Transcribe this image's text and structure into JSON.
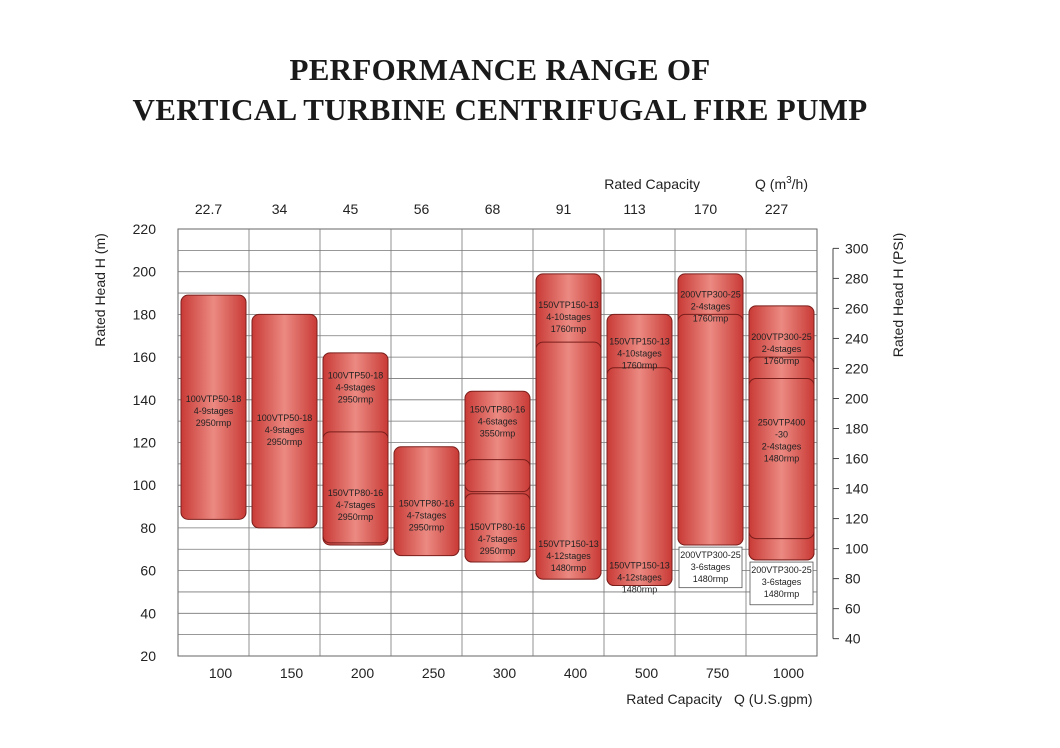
{
  "chart_data": {
    "type": "range-bar",
    "title_line1": "PERFORMANCE RANGE OF",
    "title_line2": "VERTICAL TURBINE CENTRIFUGAL FIRE PUMP",
    "top_axis_label": "Rated Capacity",
    "top_axis_unit_base": "Q (m",
    "top_axis_unit_sup": "3",
    "top_axis_unit_end": "/h)",
    "bottom_axis_label": "Rated Capacity",
    "bottom_axis_unit": "Q (U.S.gpm)",
    "left_axis_label": "Rated Head",
    "left_axis_unit": "H (m)",
    "right_axis_label": "Rated Head",
    "right_axis_unit": "H (PSI)",
    "categories_gpm": [
      "100",
      "150",
      "200",
      "250",
      "300",
      "400",
      "500",
      "750",
      "1000"
    ],
    "categories_m3h": [
      "22.7",
      "34",
      "45",
      "56",
      "68",
      "91",
      "113",
      "170",
      "227"
    ],
    "y_ticks_m": [
      20,
      40,
      60,
      80,
      100,
      120,
      140,
      160,
      180,
      200,
      220
    ],
    "ylim_m": [
      20,
      220
    ],
    "y_ticks_psi": [
      40,
      60,
      80,
      100,
      120,
      140,
      160,
      180,
      200,
      220,
      240,
      260,
      280,
      300
    ],
    "grid": true,
    "bars": [
      {
        "col": 0,
        "low": 84,
        "high": 189,
        "label": [
          "100VTP50-18",
          "4-9stages",
          "2950rmp"
        ],
        "label_y": 139
      },
      {
        "col": 1,
        "low": 80,
        "high": 180,
        "label": [
          "100VTP50-18",
          "4-9stages",
          "2950rmp"
        ],
        "label_y": 130
      },
      {
        "col": 2,
        "low": 72,
        "high": 162,
        "label": [
          "100VTP50-18",
          "4-9stages",
          "2950rmp"
        ],
        "label_y": 150
      },
      {
        "col": 2,
        "low": 73,
        "high": 125,
        "label": [
          "150VTP80-16",
          "4-7stages",
          "2950rmp"
        ],
        "label_y": 95
      },
      {
        "col": 3,
        "low": 67,
        "high": 118,
        "label": [
          "150VTP80-16",
          "4-7stages",
          "2950rmp"
        ],
        "label_y": 90
      },
      {
        "col": 4,
        "low": 64,
        "high": 144,
        "label": [
          "150VTP80-16",
          "4-6stages",
          "3550rmp"
        ],
        "label_y": 134
      },
      {
        "col": 4,
        "low": 97,
        "high": 112,
        "label": [],
        "label_y": 0
      },
      {
        "col": 4,
        "low": 64,
        "high": 96,
        "label": [
          "150VTP80-16",
          "4-7stages",
          "2950rmp"
        ],
        "label_y": 79
      },
      {
        "col": 5,
        "low": 56,
        "high": 199,
        "label": [
          "150VTP150-13",
          "4-10stages",
          "1760rmp"
        ],
        "label_y": 183
      },
      {
        "col": 5,
        "low": 56,
        "high": 167,
        "label": [
          "150VTP150-13",
          "4-12stages",
          "1480rmp"
        ],
        "label_y": 71
      },
      {
        "col": 6,
        "low": 53,
        "high": 180,
        "label": [
          "150VTP150-13",
          "4-10stages",
          "1760rmp"
        ],
        "label_y": 166
      },
      {
        "col": 6,
        "low": 53,
        "high": 155,
        "label": [
          "150VTP150-13",
          "4-12stages",
          "1480rmp"
        ],
        "label_y": 61
      },
      {
        "col": 7,
        "low": 72,
        "high": 199,
        "label": [
          "200VTP300-25",
          "2-4stages",
          "1760rmp"
        ],
        "label_y": 188
      },
      {
        "col": 7,
        "low": 72,
        "high": 180,
        "label": [],
        "label_y": 0
      },
      {
        "col": 8,
        "low": 65,
        "high": 184,
        "label": [
          "200VTP300-25",
          "2-4stages",
          "1760rmp"
        ],
        "label_y": 168
      },
      {
        "col": 8,
        "low": 65,
        "high": 160,
        "label": [],
        "label_y": 0
      },
      {
        "col": 8,
        "low": 75,
        "high": 150,
        "label": [
          "250VTP400",
          "-30",
          "2-4stages",
          "1480rmp"
        ],
        "label_y": 128
      }
    ],
    "callouts": [
      {
        "col": 7,
        "top": 71,
        "bottom": 52,
        "label": [
          "200VTP300-25",
          "3-6stages",
          "1480rmp"
        ]
      },
      {
        "col": 8,
        "top": 64,
        "bottom": 44,
        "label": [
          "200VTP300-25",
          "3-6stages",
          "1480rmp"
        ]
      }
    ]
  }
}
